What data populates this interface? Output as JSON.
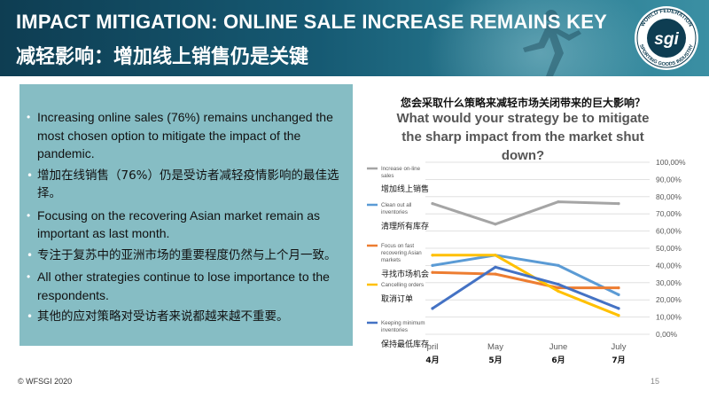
{
  "slide": {
    "title_en": "IMPACT MITIGATION: ONLINE SALE INCREASE REMAINS KEY",
    "title_zh": "减轻影响：增加线上销售仍是关键",
    "logo": {
      "ring_text": "WORLD FEDERATION · SPORTING GOODS INDUSTRY",
      "initials": "sgi"
    },
    "bullets": [
      {
        "text": "Increasing online sales (76%) remains unchanged the most chosen option to mitigate the impact of the pandemic.",
        "lang": "en"
      },
      {
        "text": "增加在线销售（76%）仍是受访者减轻疫情影响的最佳选择。",
        "lang": "zh"
      },
      {
        "text": "Focusing on the recovering Asian market remain as important as last month.",
        "lang": "en"
      },
      {
        "text": "专注于复苏中的亚洲市场的重要程度仍然与上个月一致。",
        "lang": "zh"
      },
      {
        "text": "All other strategies continue to lose importance to the respondents.",
        "lang": "en"
      },
      {
        "text": "其他的应对策略对受访者来说都越来越不重要。",
        "lang": "zh"
      }
    ],
    "footer_left": "© WFSGI 2020",
    "page_number": "15"
  },
  "chart_data": {
    "type": "line",
    "title_zh": "您会采取什么策略来减轻市场关闭带来的巨大影响？",
    "title": "What would your strategy be to mitigate the sharp impact from the market shut down?",
    "categories": [
      "pril",
      "May",
      "June",
      "July"
    ],
    "categories_zh": [
      "4月",
      "5月",
      "6月",
      "7月"
    ],
    "ylim": [
      0,
      100
    ],
    "yticks": [
      "0,00%",
      "10,00%",
      "20,00%",
      "30,00%",
      "40,00%",
      "50,00%",
      "60,00%",
      "70,00%",
      "80,00%",
      "90,00%",
      "100,00%"
    ],
    "ytick_values": [
      0,
      10,
      20,
      30,
      40,
      50,
      60,
      70,
      80,
      90,
      100
    ],
    "grid": true,
    "legend_position": "left",
    "series": [
      {
        "name": "Increase on-line sales",
        "name_zh": "增加线上销售",
        "color": "#a5a5a5",
        "values": [
          76,
          64,
          77,
          76
        ]
      },
      {
        "name": "Clean out all inventories",
        "name_zh": "清理所有库存",
        "color": "#5b9bd5",
        "values": [
          40,
          46,
          40,
          23
        ]
      },
      {
        "name": "Focus on fast recovering Asian markets",
        "name_zh": "寻找市场机会",
        "color": "#ed7d31",
        "values": [
          36,
          35,
          27,
          27
        ]
      },
      {
        "name": "Cancelling orders",
        "name_zh": "取消订单",
        "color": "#ffc000",
        "values": [
          46,
          46,
          25,
          11
        ]
      },
      {
        "name": "Keeping minimum inventories",
        "name_zh": "保持最低库存",
        "color": "#4472c4",
        "values": [
          15,
          39,
          29,
          15
        ]
      }
    ]
  }
}
